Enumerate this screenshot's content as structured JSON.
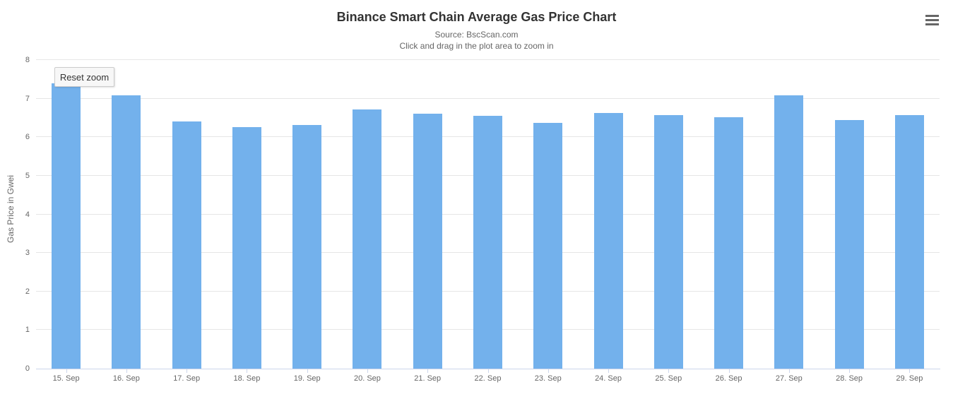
{
  "chart_data": {
    "type": "bar",
    "title": "Binance Smart Chain Average Gas Price Chart",
    "subtitle": "Source: BscScan.com",
    "subtitle2": "Click and drag in the plot area to zoom in",
    "categories": [
      "15. Sep",
      "16. Sep",
      "17. Sep",
      "18. Sep",
      "19. Sep",
      "20. Sep",
      "21. Sep",
      "22. Sep",
      "23. Sep",
      "24. Sep",
      "25. Sep",
      "26. Sep",
      "27. Sep",
      "28. Sep",
      "29. Sep"
    ],
    "values": [
      7.39,
      7.09,
      6.4,
      6.27,
      6.31,
      6.72,
      6.6,
      6.55,
      6.38,
      6.63,
      6.58,
      6.51,
      7.08,
      6.45,
      6.58
    ],
    "xlabel": "",
    "ylabel": "Gas Price in Gwei",
    "ylim": [
      0,
      8
    ],
    "yticks": [
      0,
      1,
      2,
      3,
      4,
      5,
      6,
      7,
      8
    ],
    "grid": true,
    "legend": false,
    "bar_color": "#73b1ec",
    "grid_color": "#e6e6e6",
    "axis_line_color": "#ccd6eb",
    "title_color": "#333333",
    "subtitle_color": "#666666",
    "axis_label_color": "#666666"
  },
  "ui": {
    "reset_zoom_label": "Reset zoom",
    "menu_icon": "hamburger-menu-icon"
  }
}
